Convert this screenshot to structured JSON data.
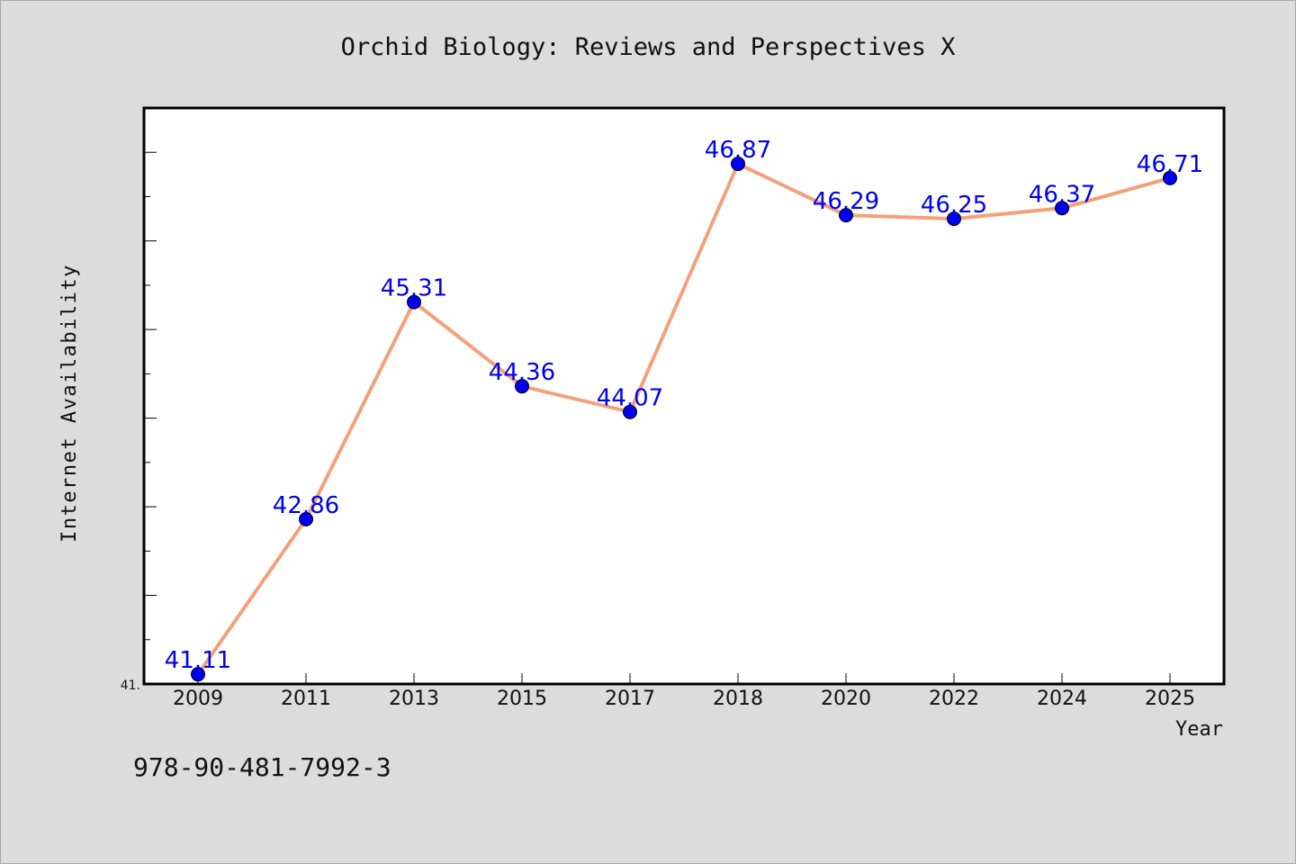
{
  "chart_data": {
    "type": "line",
    "title": "Orchid Biology: Reviews and Perspectives X",
    "xlabel": "Year",
    "ylabel": "Internet Availability",
    "categories": [
      "2009",
      "2011",
      "2013",
      "2015",
      "2017",
      "2018",
      "2020",
      "2022",
      "2024",
      "2025"
    ],
    "series": [
      {
        "values": [
          41.11,
          42.86,
          45.31,
          44.36,
          44.07,
          46.87,
          46.29,
          46.25,
          46.37,
          46.71
        ],
        "labels": [
          "41.11",
          "42.86",
          "45.31",
          "44.36",
          "44.07",
          "46.87",
          "46.29",
          "46.25",
          "46.37",
          "46.71"
        ],
        "line_color": "#f4a07a",
        "marker_color": "#0000ee",
        "label_color": "#0000ee"
      }
    ],
    "ylim": [
      41.0,
      47.5
    ],
    "y_major_ticks": [
      41.0
    ],
    "y_major_tick_labels": [
      "41."
    ],
    "y_minor_step": 0.5,
    "grid": false,
    "legend": "none"
  },
  "footer": {
    "isbn": "978-90-481-7992-3"
  },
  "colors": {
    "background": "#dcdcdc",
    "plot_background": "#ffffff",
    "axis": "#000000"
  }
}
